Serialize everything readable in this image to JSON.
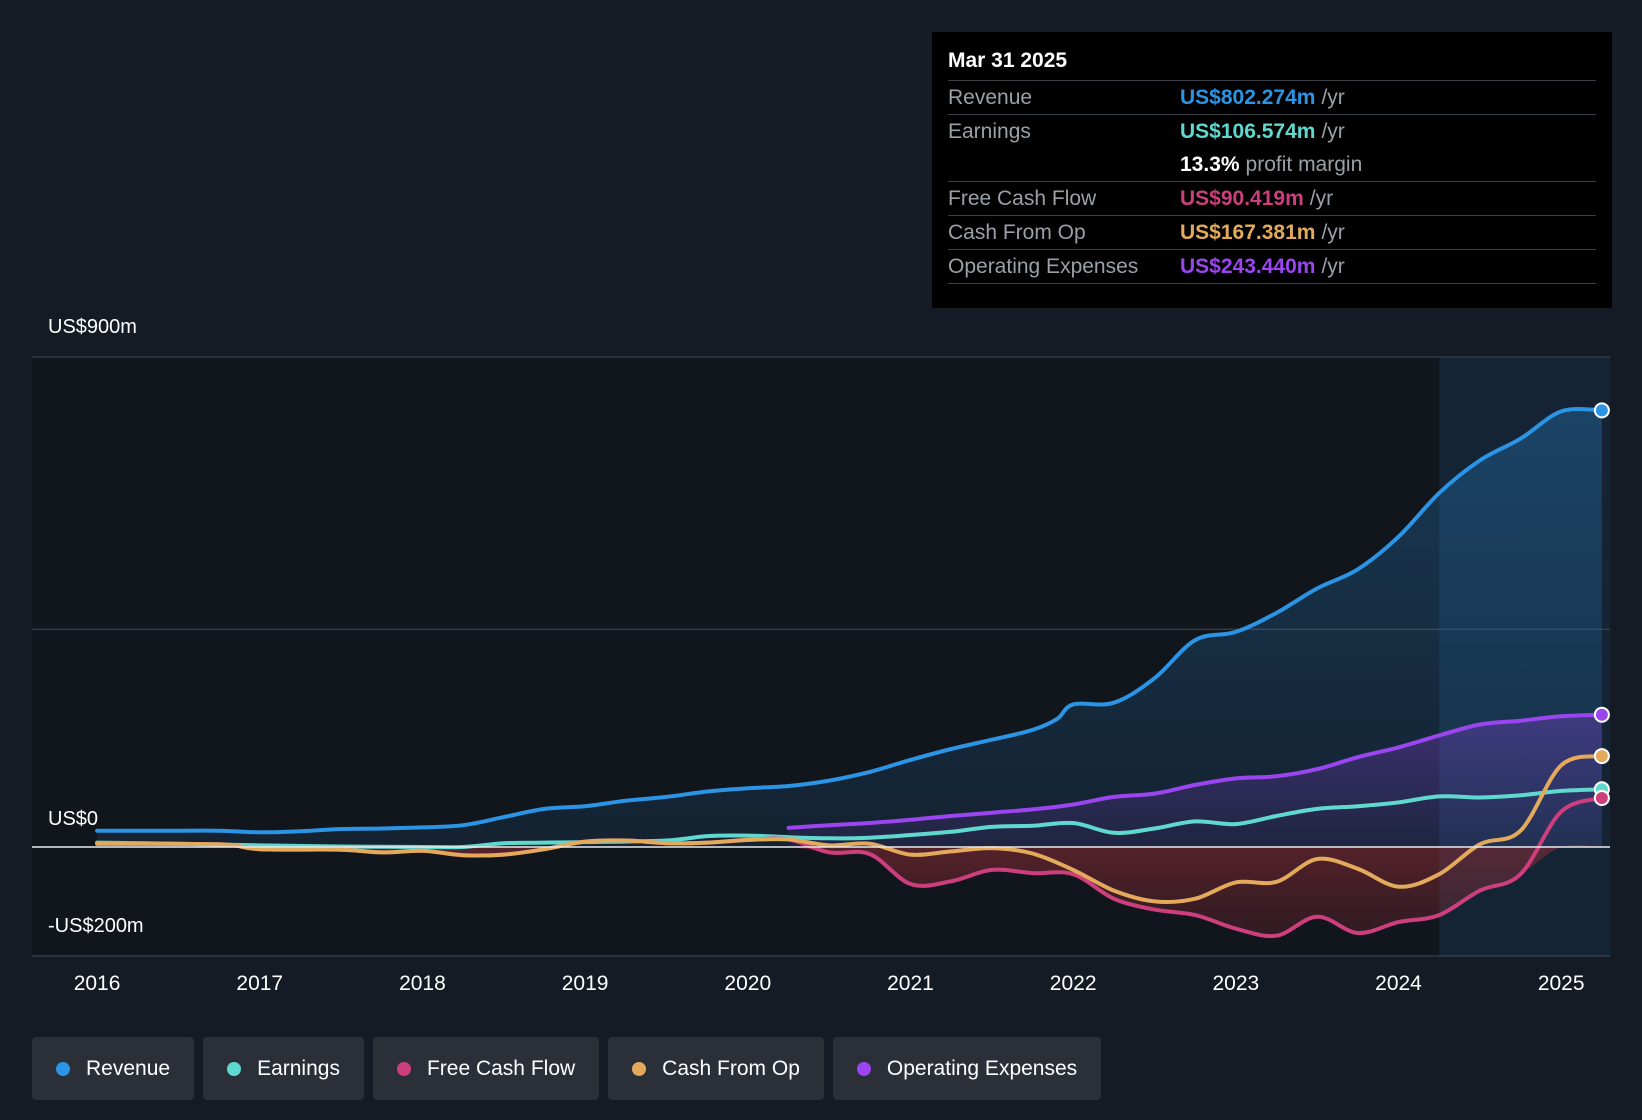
{
  "colors": {
    "background": "#151b24",
    "revenue": "#2b94e5",
    "earnings": "#5fd9cf",
    "free_cash_flow": "#cc3f7c",
    "cash_from_op": "#e3aa5c",
    "operating_expenses": "#9a45f0"
  },
  "tooltip": {
    "date": "Mar 31 2025",
    "rows": [
      {
        "name": "Revenue",
        "value": "US$802.274m",
        "unit": "/yr"
      },
      {
        "name": "Earnings",
        "value": "US$106.574m",
        "unit": "/yr"
      },
      {
        "margin_value": "13.3%",
        "margin_label": "profit margin"
      },
      {
        "name": "Free Cash Flow",
        "value": "US$90.419m",
        "unit": "/yr"
      },
      {
        "name": "Cash From Op",
        "value": "US$167.381m",
        "unit": "/yr"
      },
      {
        "name": "Operating Expenses",
        "value": "US$243.440m",
        "unit": "/yr"
      }
    ]
  },
  "legend": [
    {
      "label": "Revenue",
      "icon": "revenue-dot-icon"
    },
    {
      "label": "Earnings",
      "icon": "earnings-dot-icon"
    },
    {
      "label": "Free Cash Flow",
      "icon": "free-cash-flow-dot-icon"
    },
    {
      "label": "Cash From Op",
      "icon": "cash-from-op-dot-icon"
    },
    {
      "label": "Operating Expenses",
      "icon": "operating-expenses-dot-icon"
    }
  ],
  "chart_data": {
    "type": "line",
    "title": "",
    "xlabel": "",
    "ylabel": "",
    "ylim": [
      -200,
      900
    ],
    "xlim": [
      2015.6,
      2025.3
    ],
    "y_axis_labels": [
      "US$900m",
      "US$0",
      "-US$200m"
    ],
    "y_axis_label_values": [
      900,
      0,
      -200
    ],
    "gridlines": [
      900,
      400,
      0,
      -200
    ],
    "x_ticks": [
      "2016",
      "2017",
      "2018",
      "2019",
      "2020",
      "2021",
      "2022",
      "2023",
      "2024",
      "2025"
    ],
    "x_tick_values": [
      2016,
      2017,
      2018,
      2019,
      2020,
      2021,
      2022,
      2023,
      2024,
      2025
    ],
    "highlight_range": [
      2024.25,
      2025.3
    ],
    "series": [
      {
        "name": "Revenue",
        "key": "revenue",
        "x": [
          2016.0,
          2016.5,
          2016.75,
          2017.0,
          2017.25,
          2017.5,
          2017.75,
          2018.0,
          2018.25,
          2018.5,
          2018.75,
          2019.0,
          2019.25,
          2019.5,
          2019.75,
          2020.0,
          2020.25,
          2020.5,
          2020.75,
          2021.0,
          2021.25,
          2021.5,
          2021.75,
          2021.9,
          2022.0,
          2022.25,
          2022.5,
          2022.75,
          2023.0,
          2023.25,
          2023.5,
          2023.75,
          2024.0,
          2024.25,
          2024.5,
          2024.75,
          2025.0,
          2025.25
        ],
        "values": [
          30,
          30,
          30,
          27,
          29,
          33,
          34,
          36,
          40,
          55,
          70,
          75,
          85,
          92,
          102,
          108,
          112,
          122,
          138,
          160,
          180,
          197,
          215,
          235,
          262,
          265,
          310,
          380,
          395,
          430,
          475,
          510,
          570,
          650,
          710,
          750,
          800,
          802
        ]
      },
      {
        "name": "Operating Expenses",
        "key": "operating_expenses",
        "x": [
          2020.25,
          2020.5,
          2020.75,
          2021.0,
          2021.25,
          2021.5,
          2021.75,
          2022.0,
          2022.25,
          2022.5,
          2022.75,
          2023.0,
          2023.25,
          2023.5,
          2023.75,
          2024.0,
          2024.25,
          2024.5,
          2024.75,
          2025.0,
          2025.25
        ],
        "values": [
          35,
          40,
          44,
          50,
          57,
          63,
          69,
          78,
          92,
          98,
          114,
          126,
          130,
          143,
          165,
          183,
          205,
          225,
          232,
          240,
          243
        ]
      },
      {
        "name": "Earnings",
        "key": "earnings",
        "x": [
          2016.0,
          2016.5,
          2017.0,
          2017.5,
          2018.0,
          2018.25,
          2018.5,
          2018.75,
          2019.0,
          2019.5,
          2019.75,
          2020.0,
          2020.25,
          2020.5,
          2020.75,
          2021.0,
          2021.25,
          2021.5,
          2021.75,
          2022.0,
          2022.25,
          2022.5,
          2022.75,
          2023.0,
          2023.25,
          2023.5,
          2023.75,
          2024.0,
          2024.25,
          2024.5,
          2024.75,
          2025.0,
          2025.25
        ],
        "values": [
          8,
          6,
          3,
          1,
          0,
          0,
          7,
          8,
          9,
          12,
          20,
          21,
          18,
          16,
          17,
          22,
          28,
          37,
          39,
          44,
          26,
          34,
          47,
          42,
          57,
          70,
          75,
          82,
          93,
          91,
          95,
          103,
          106
        ]
      },
      {
        "name": "Cash From Op",
        "key": "cash_from_op",
        "x": [
          2016.0,
          2016.75,
          2017.0,
          2017.5,
          2017.75,
          2018.0,
          2018.25,
          2018.5,
          2018.75,
          2019.0,
          2019.25,
          2019.5,
          2019.75,
          2020.0,
          2020.25,
          2020.5,
          2020.75,
          2021.0,
          2021.25,
          2021.5,
          2021.75,
          2022.0,
          2022.25,
          2022.5,
          2022.75,
          2023.0,
          2023.25,
          2023.5,
          2023.75,
          2024.0,
          2024.25,
          2024.5,
          2024.75,
          2025.0,
          2025.25
        ],
        "values": [
          6,
          5,
          -4,
          -5,
          -10,
          -7,
          -15,
          -14,
          -4,
          10,
          12,
          7,
          8,
          13,
          14,
          3,
          6,
          -14,
          -8,
          -2,
          -12,
          -42,
          -80,
          -100,
          -95,
          -65,
          -64,
          -22,
          -40,
          -73,
          -50,
          5,
          30,
          150,
          167
        ]
      },
      {
        "name": "Free Cash Flow",
        "key": "free_cash_flow",
        "x": [
          2016.0,
          2016.75,
          2017.0,
          2017.5,
          2017.75,
          2018.0,
          2018.25,
          2018.5,
          2018.75,
          2019.0,
          2019.25,
          2019.5,
          2019.75,
          2020.0,
          2020.25,
          2020.5,
          2020.75,
          2021.0,
          2021.25,
          2021.5,
          2021.75,
          2022.0,
          2022.25,
          2022.5,
          2022.75,
          2023.0,
          2023.25,
          2023.5,
          2023.75,
          2024.0,
          2024.25,
          2024.5,
          2024.75,
          2025.0,
          2025.25
        ],
        "values": [
          6,
          5,
          -4,
          -5,
          -10,
          -7,
          -15,
          -14,
          -4,
          10,
          12,
          7,
          8,
          13,
          14,
          -10,
          -13,
          -68,
          -63,
          -42,
          -48,
          -50,
          -95,
          -115,
          -125,
          -150,
          -163,
          -128,
          -158,
          -138,
          -125,
          -80,
          -50,
          65,
          90
        ]
      }
    ]
  }
}
